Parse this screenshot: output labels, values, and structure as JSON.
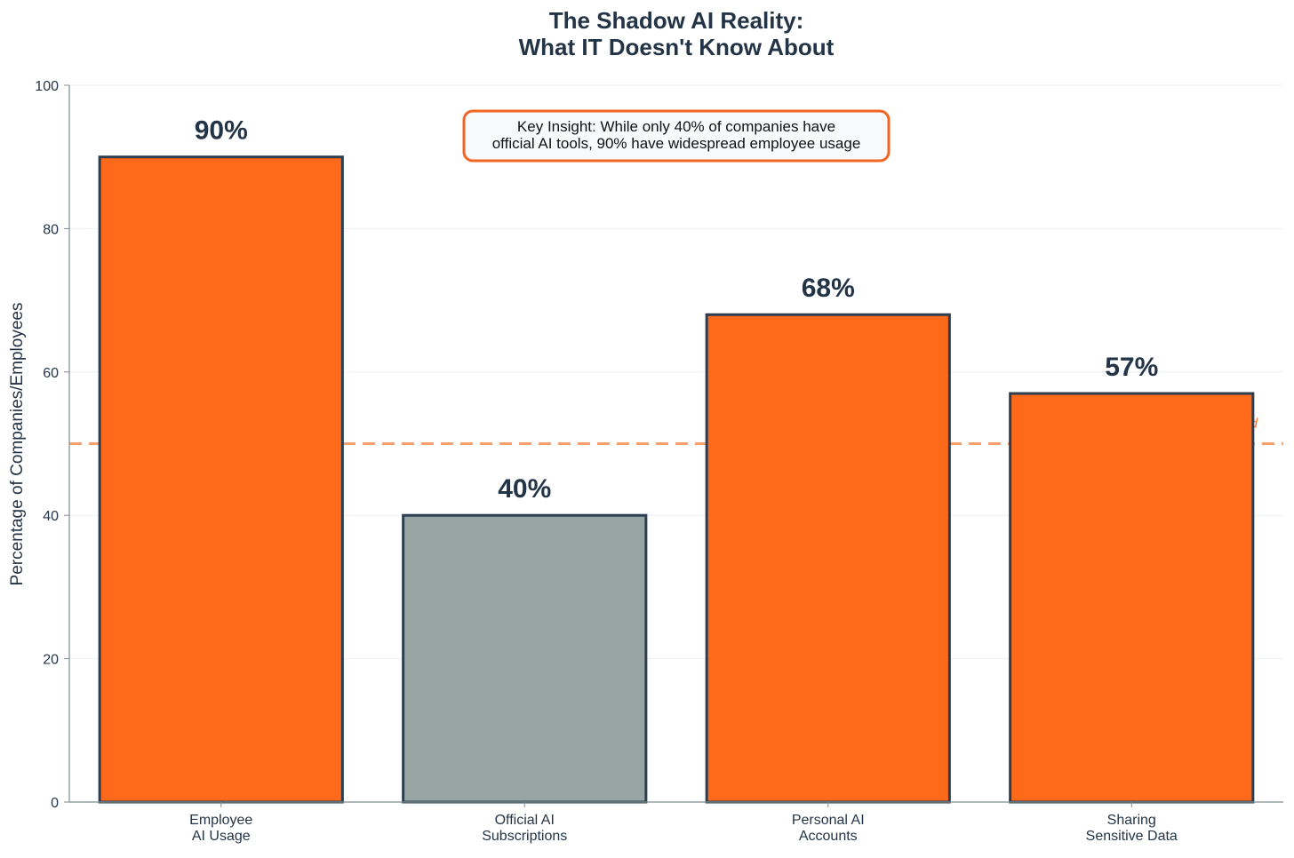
{
  "chart_data": {
    "type": "bar",
    "title_lines": [
      "The Shadow AI Reality:",
      "What IT Doesn't Know About"
    ],
    "ylabel": "Percentage of Companies/Employees",
    "xlabel": "",
    "ylim": [
      0,
      100
    ],
    "yticks": [
      0,
      20,
      40,
      60,
      80,
      100
    ],
    "grid": true,
    "categories": [
      [
        "Employee",
        "AI Usage"
      ],
      [
        "Official AI",
        "Subscriptions"
      ],
      [
        "Personal AI",
        "Accounts"
      ],
      [
        "Sharing",
        "Sensitive Data"
      ]
    ],
    "values": [
      90,
      40,
      68,
      57
    ],
    "value_labels": [
      "90%",
      "40%",
      "68%",
      "57%"
    ],
    "bar_colors": [
      "#FF6A1A",
      "#98A5A5",
      "#FF6A1A",
      "#FF6A1A"
    ],
    "bar_edge_color": "#2C3E50",
    "threshold": {
      "value": 50,
      "label": "hold",
      "color": "#F5A06E",
      "label_color": "#FF6A1A"
    },
    "annotation": {
      "lines": [
        "Key Insight: While only 40% of companies have",
        "official AI tools, 90% have widespread employee usage"
      ],
      "border_color": "#F26522",
      "background": "#F7F9FB"
    }
  },
  "colors": {
    "text": "#243447",
    "axis": "#7F8C8D",
    "grid": "#ECEFF1"
  }
}
